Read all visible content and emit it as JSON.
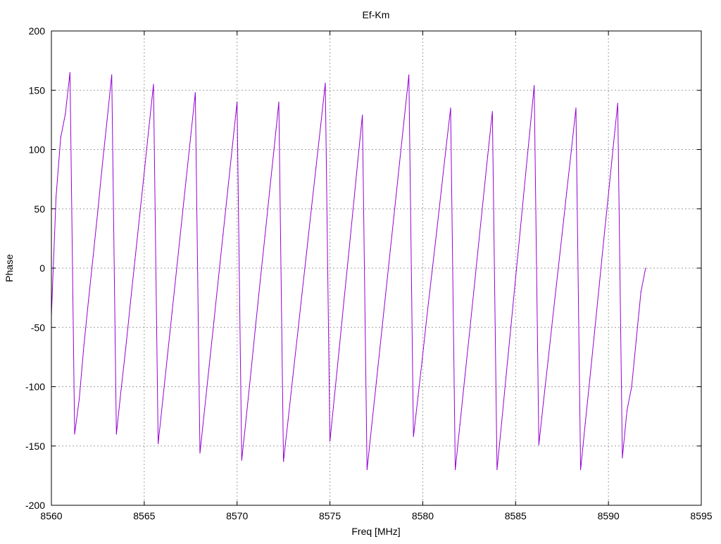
{
  "chart_data": {
    "type": "line",
    "title": "Ef-Km",
    "xlabel": "Freq [MHz]",
    "ylabel": "Phase",
    "xlim": [
      8560,
      8595
    ],
    "ylim": [
      -200,
      200
    ],
    "xticks": [
      8560,
      8565,
      8570,
      8575,
      8580,
      8585,
      8590,
      8595
    ],
    "yticks": [
      -200,
      -150,
      -100,
      -50,
      0,
      50,
      100,
      150,
      200
    ],
    "grid": true,
    "series": [
      {
        "name": "phase",
        "color": "#9400d3",
        "x_start": 8560,
        "x_step": 0.25,
        "values": [
          -40,
          60,
          110,
          130,
          165,
          -140,
          -110,
          -65,
          -27,
          10,
          48,
          88,
          125,
          163,
          -140,
          -103,
          -68,
          -30,
          7,
          44,
          81,
          118,
          155,
          -148,
          -111,
          -74,
          -37,
          0,
          37,
          74,
          111,
          148,
          -156,
          -119,
          -82,
          -45,
          -8,
          29,
          66,
          103,
          140,
          -162,
          -125,
          -87,
          -48,
          -10,
          27,
          65,
          102,
          140,
          -163,
          -128,
          -92,
          -57,
          -21,
          14,
          50,
          85,
          120,
          156,
          -146,
          -107,
          -68,
          -28,
          10,
          50,
          90,
          129,
          -170,
          -133,
          -96,
          -59,
          -22,
          15,
          52,
          89,
          126,
          163,
          -142,
          -108,
          -73,
          -37,
          -3,
          31,
          66,
          101,
          135,
          -170,
          -132,
          -94,
          -57,
          -19,
          19,
          57,
          95,
          132,
          -170,
          -130,
          -89,
          -49,
          -8,
          32,
          73,
          113,
          154,
          -149,
          -113,
          -78,
          -42,
          -7,
          28,
          64,
          99,
          135,
          -170,
          -131,
          -93,
          -54,
          -15,
          24,
          62,
          101,
          139,
          -160,
          -120,
          -100,
          -60,
          -20,
          0
        ]
      }
    ]
  }
}
